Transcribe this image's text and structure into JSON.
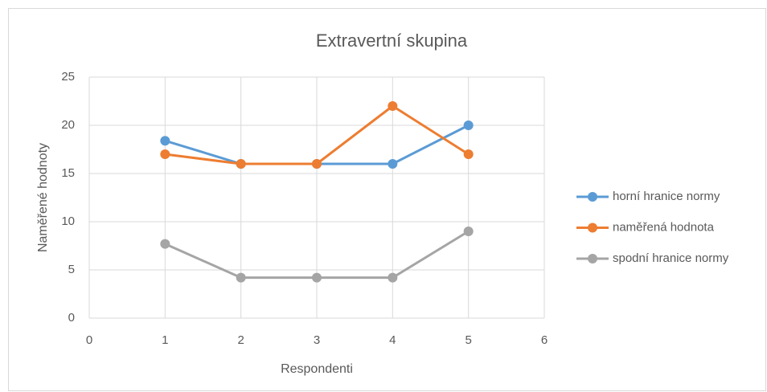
{
  "chart_data": {
    "type": "line",
    "title": "Extravertní skupina",
    "x_label": "Respondenti",
    "y_label": "Naměřené hodnoty",
    "x": [
      1,
      2,
      3,
      4,
      5
    ],
    "series": [
      {
        "name": "horní hranice normy",
        "color": "#5b9bd5",
        "values": [
          18.4,
          16,
          16,
          16,
          20
        ]
      },
      {
        "name": "naměřená hodnota",
        "color": "#ed7d31",
        "values": [
          17,
          16,
          16,
          22,
          17
        ]
      },
      {
        "name": "spodní hranice normy",
        "color": "#a5a5a5",
        "values": [
          7.7,
          4.2,
          4.2,
          4.2,
          9
        ]
      }
    ],
    "xlim": [
      0,
      6
    ],
    "xticks": [
      0,
      1,
      2,
      3,
      4,
      5,
      6
    ],
    "ylim": [
      0,
      25
    ],
    "yticks": [
      0,
      5,
      10,
      15,
      20,
      25
    ],
    "grid": true,
    "legend": "right"
  }
}
